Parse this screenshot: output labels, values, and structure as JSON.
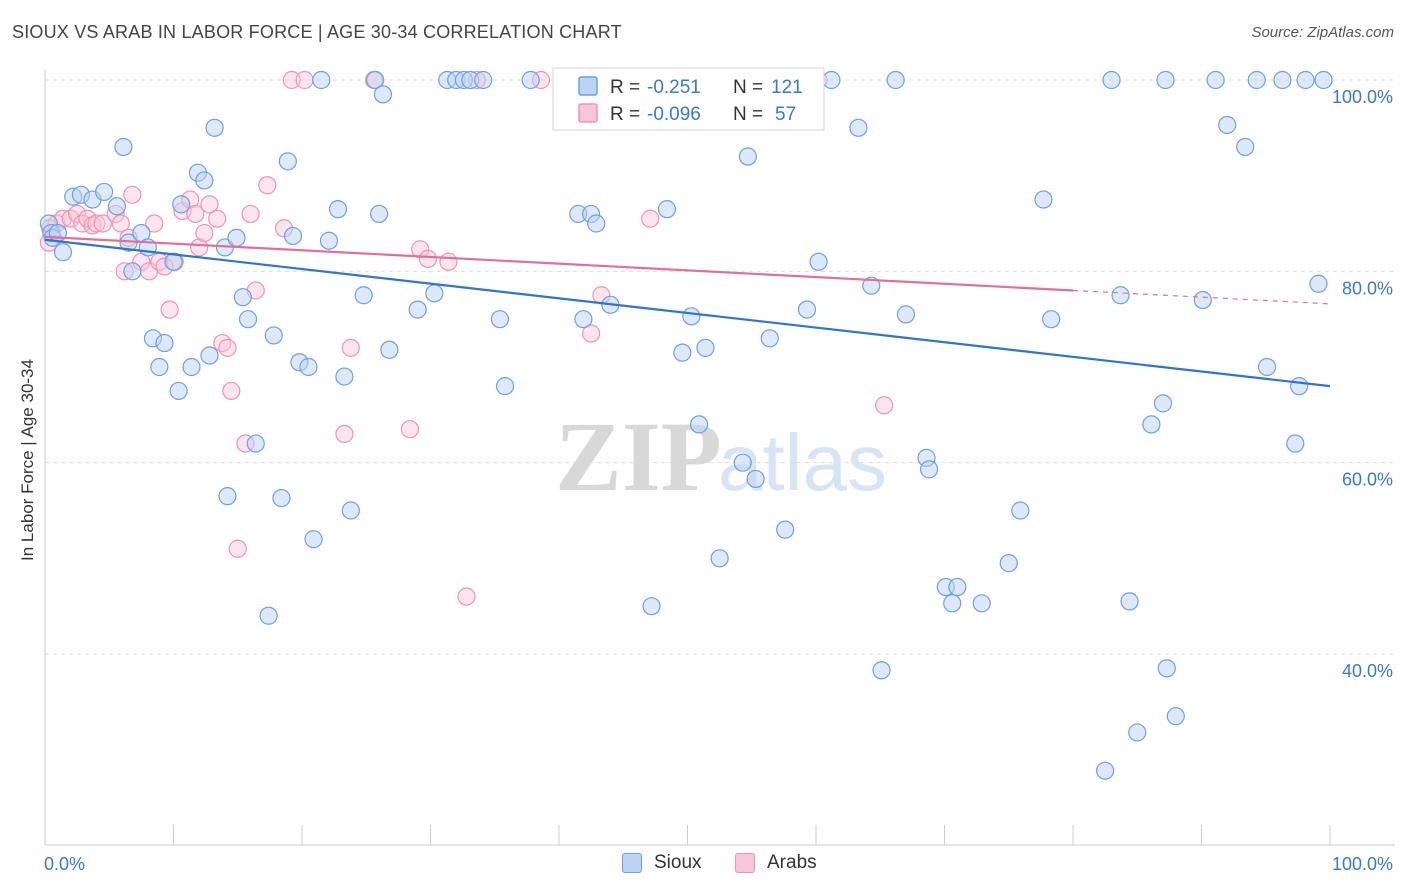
{
  "title": "SIOUX VS ARAB IN LABOR FORCE | AGE 30-34 CORRELATION CHART",
  "source": "Source: ZipAtlas.com",
  "watermark": {
    "zip": "ZIP",
    "atlas": "atlas"
  },
  "colors": {
    "sioux": "#6fa0e0",
    "sioux_fill": "#bcd3f3",
    "sioux_line": "#2f74d0",
    "arabs": "#ef93b3",
    "arabs_fill": "#f8c6d8",
    "arabs_line": "#e0709a",
    "value_text": "#3a78d0"
  },
  "stats_legend": [
    {
      "series": "Sioux",
      "r_label": "R =",
      "r_value": "-0.251",
      "n_label": "N =",
      "n_value": "121"
    },
    {
      "series": "Arabs",
      "r_label": "R =",
      "r_value": "-0.096",
      "n_label": "N =",
      "n_value": "57"
    }
  ],
  "bottom_legend": [
    {
      "label": "Sioux"
    },
    {
      "label": "Arabs"
    }
  ],
  "chart_data": {
    "type": "scatter",
    "title": "SIOUX VS ARAB IN LABOR FORCE | AGE 30-34 CORRELATION CHART",
    "xlabel": "",
    "ylabel": "In Labor Force | Age 30-34",
    "xlim": [
      0,
      100
    ],
    "ylim": [
      20,
      102
    ],
    "x_tick_labels": [
      "0.0%",
      "100.0%"
    ],
    "y_tick_labels": [
      "40.0%",
      "60.0%",
      "80.0%",
      "100.0%"
    ],
    "y_gridlines": [
      40,
      60,
      80,
      100
    ],
    "legend_position": "top-center",
    "series": [
      {
        "name": "Sioux",
        "r": -0.251,
        "n": 121,
        "trend": [
          [
            0,
            83.3
          ],
          [
            100,
            68.0
          ]
        ],
        "points": [
          [
            0.3,
            85
          ],
          [
            0.5,
            84
          ],
          [
            0.6,
            83.5
          ],
          [
            1,
            84
          ],
          [
            1.4,
            82
          ],
          [
            2.2,
            87.8
          ],
          [
            2.8,
            88
          ],
          [
            3.7,
            87.5
          ],
          [
            4.6,
            88.3
          ],
          [
            5.6,
            86.8
          ],
          [
            6.1,
            93
          ],
          [
            6.5,
            83
          ],
          [
            6.8,
            80
          ],
          [
            7.5,
            84
          ],
          [
            8,
            82.5
          ],
          [
            8.4,
            73
          ],
          [
            8.9,
            70
          ],
          [
            9.3,
            72.5
          ],
          [
            10,
            81
          ],
          [
            10.4,
            67.5
          ],
          [
            10.6,
            87
          ],
          [
            11.4,
            70
          ],
          [
            11.9,
            90.3
          ],
          [
            12.4,
            89.5
          ],
          [
            12.8,
            71.2
          ],
          [
            13.2,
            95
          ],
          [
            14,
            82.5
          ],
          [
            14.2,
            56.5
          ],
          [
            14.9,
            83.5
          ],
          [
            15.4,
            77.3
          ],
          [
            15.8,
            75
          ],
          [
            16.4,
            62
          ],
          [
            17.4,
            44
          ],
          [
            17.8,
            73.3
          ],
          [
            18.4,
            56.3
          ],
          [
            18.9,
            91.5
          ],
          [
            19.3,
            83.7
          ],
          [
            19.8,
            70.5
          ],
          [
            20.5,
            70
          ],
          [
            20.9,
            52
          ],
          [
            21.5,
            100
          ],
          [
            22.1,
            83.2
          ],
          [
            22.8,
            86.5
          ],
          [
            23.3,
            69
          ],
          [
            23.8,
            55
          ],
          [
            24.8,
            77.5
          ],
          [
            25.7,
            100
          ],
          [
            26,
            86
          ],
          [
            26.3,
            98.5
          ],
          [
            26.8,
            71.8
          ],
          [
            29,
            76
          ],
          [
            30.3,
            77.7
          ],
          [
            31.3,
            100
          ],
          [
            32,
            100
          ],
          [
            32.6,
            100
          ],
          [
            33.1,
            100
          ],
          [
            34.1,
            100
          ],
          [
            35.4,
            75
          ],
          [
            35.8,
            68
          ],
          [
            37.8,
            100
          ],
          [
            41.5,
            86
          ],
          [
            41.9,
            75
          ],
          [
            42.5,
            86
          ],
          [
            42.9,
            85
          ],
          [
            44,
            76.5
          ],
          [
            44.8,
            100
          ],
          [
            47.2,
            45
          ],
          [
            47.9,
            100
          ],
          [
            48.4,
            86.5
          ],
          [
            49.6,
            71.5
          ],
          [
            50.3,
            75.3
          ],
          [
            50.9,
            64
          ],
          [
            51.4,
            72
          ],
          [
            52.5,
            50
          ],
          [
            54.3,
            60
          ],
          [
            54.7,
            92
          ],
          [
            55.3,
            58.3
          ],
          [
            55.8,
            100
          ],
          [
            56.4,
            73
          ],
          [
            57.6,
            53
          ],
          [
            58.3,
            100
          ],
          [
            59.3,
            76
          ],
          [
            60.2,
            81
          ],
          [
            61.2,
            100
          ],
          [
            63.3,
            95
          ],
          [
            64.3,
            78.5
          ],
          [
            65.1,
            38.3
          ],
          [
            66.2,
            100
          ],
          [
            67,
            75.5
          ],
          [
            68.6,
            60.5
          ],
          [
            68.8,
            59.3
          ],
          [
            70.1,
            47
          ],
          [
            70.6,
            45.3
          ],
          [
            71,
            47
          ],
          [
            72.9,
            45.3
          ],
          [
            75,
            49.5
          ],
          [
            75.9,
            55
          ],
          [
            77.7,
            87.5
          ],
          [
            78.3,
            75
          ],
          [
            82.5,
            27.8
          ],
          [
            83,
            100
          ],
          [
            83.7,
            77.5
          ],
          [
            84.4,
            45.5
          ],
          [
            85,
            31.8
          ],
          [
            86.1,
            64
          ],
          [
            87,
            66.2
          ],
          [
            87.2,
            100
          ],
          [
            87.3,
            38.5
          ],
          [
            88,
            33.5
          ],
          [
            90.1,
            77
          ],
          [
            91.1,
            100
          ],
          [
            92,
            95.3
          ],
          [
            93.4,
            93
          ],
          [
            94.3,
            100
          ],
          [
            95.1,
            70
          ],
          [
            96.3,
            100
          ],
          [
            97.3,
            62
          ],
          [
            97.6,
            68
          ],
          [
            98.1,
            100
          ],
          [
            99.1,
            78.7
          ],
          [
            99.5,
            100
          ]
        ]
      },
      {
        "name": "Arabs",
        "r": -0.096,
        "n": 57,
        "trend": [
          [
            0,
            83.6
          ],
          [
            80,
            78.0
          ]
        ],
        "trend_dashed": [
          [
            80,
            78.0
          ],
          [
            100,
            76.6
          ]
        ],
        "points": [
          [
            0.3,
            83
          ],
          [
            0.4,
            84.5
          ],
          [
            0.9,
            85
          ],
          [
            1.4,
            85.5
          ],
          [
            2,
            85.5
          ],
          [
            2.5,
            86
          ],
          [
            2.9,
            85
          ],
          [
            3.3,
            85.5
          ],
          [
            3.7,
            84.8
          ],
          [
            4,
            85
          ],
          [
            4.5,
            85
          ],
          [
            5.5,
            86
          ],
          [
            5.9,
            85
          ],
          [
            6.2,
            80
          ],
          [
            6.5,
            83.5
          ],
          [
            6.8,
            88
          ],
          [
            7.5,
            81
          ],
          [
            8.1,
            80
          ],
          [
            8.5,
            85
          ],
          [
            8.9,
            81
          ],
          [
            9.3,
            80.5
          ],
          [
            9.7,
            76
          ],
          [
            10.1,
            81
          ],
          [
            10.7,
            86.3
          ],
          [
            11.3,
            87.5
          ],
          [
            11.7,
            86
          ],
          [
            12,
            82.5
          ],
          [
            12.4,
            84
          ],
          [
            12.8,
            87
          ],
          [
            13.4,
            85.5
          ],
          [
            13.8,
            72.5
          ],
          [
            14.2,
            72
          ],
          [
            14.5,
            67.5
          ],
          [
            15,
            51
          ],
          [
            15.6,
            62
          ],
          [
            16,
            86
          ],
          [
            16.4,
            78
          ],
          [
            17.3,
            89
          ],
          [
            18.6,
            84.5
          ],
          [
            19.2,
            100
          ],
          [
            20.2,
            100
          ],
          [
            23.3,
            63
          ],
          [
            23.8,
            72
          ],
          [
            25.6,
            100
          ],
          [
            28.4,
            63.5
          ],
          [
            29.2,
            82.3
          ],
          [
            29.8,
            81.3
          ],
          [
            31.4,
            81
          ],
          [
            32.8,
            46
          ],
          [
            33.6,
            100
          ],
          [
            38.6,
            100
          ],
          [
            42.5,
            73.5
          ],
          [
            43.3,
            77.5
          ],
          [
            46.4,
            100
          ],
          [
            47.1,
            85.5
          ],
          [
            60.2,
            100
          ],
          [
            65.3,
            66
          ]
        ]
      }
    ]
  }
}
